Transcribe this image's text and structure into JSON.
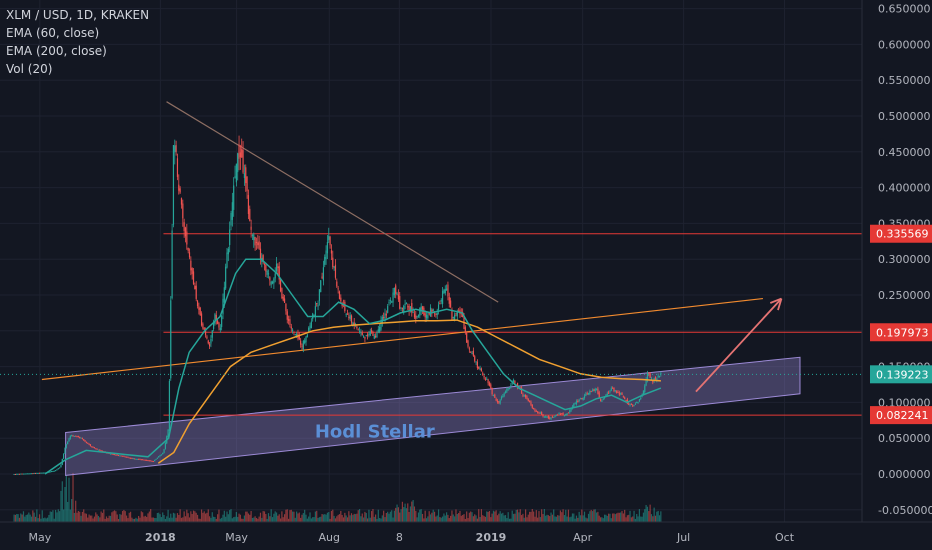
{
  "legend": {
    "symbol": "XLM / USD, 1D, KRAKEN",
    "ema60": "EMA (60, close)",
    "ema200": "EMA (200, close)",
    "vol": "Vol (20)"
  },
  "colors": {
    "background": "#131722",
    "axis_text": "#b2b5be",
    "up_candle": "#26a69a",
    "down_candle": "#ef5350",
    "ema60": "#26a69a",
    "ema200": "#f0a030",
    "horizontal_lines": "#e53935",
    "trendline_down": "#8d6e63",
    "trendline_up": "#f28b2f",
    "channel_fill": "#9c8ad6",
    "arrow": "#e57373",
    "current_price_tag": "#26a69a",
    "text_annotation": "#5b8fd6"
  },
  "chart_data": {
    "type": "line",
    "title": "XLM / USD, 1D, KRAKEN",
    "y_axis": {
      "position": "right",
      "ticks": [
        "0.650000",
        "0.600000",
        "0.550000",
        "0.500000",
        "0.450000",
        "0.400000",
        "0.350000",
        "0.300000",
        "0.250000",
        "0.200000",
        "0.150000",
        "0.100000",
        "0.050000",
        "0.000000",
        "-0.050000"
      ],
      "ylim": [
        -0.06,
        0.66
      ]
    },
    "x_axis": {
      "labels": [
        "May",
        "2018",
        "May",
        "Aug",
        "8",
        "2019",
        "Apr",
        "Jul",
        "Oct"
      ]
    },
    "series": [
      {
        "name": "Price",
        "points": [
          [
            -30,
            0.0
          ],
          [
            0,
            0.002
          ],
          [
            10,
            0.005
          ],
          [
            15,
            0.01
          ],
          [
            20,
            0.04
          ],
          [
            25,
            0.055
          ],
          [
            35,
            0.05
          ],
          [
            45,
            0.038
          ],
          [
            55,
            0.032
          ],
          [
            65,
            0.028
          ],
          [
            75,
            0.025
          ],
          [
            85,
            0.022
          ],
          [
            95,
            0.02
          ],
          [
            105,
            0.018
          ],
          [
            115,
            0.03
          ],
          [
            120,
            0.065
          ],
          [
            125,
            0.48
          ],
          [
            130,
            0.4
          ],
          [
            135,
            0.34
          ],
          [
            140,
            0.3
          ],
          [
            145,
            0.26
          ],
          [
            150,
            0.22
          ],
          [
            155,
            0.2
          ],
          [
            160,
            0.18
          ],
          [
            165,
            0.22
          ],
          [
            170,
            0.2
          ],
          [
            175,
            0.28
          ],
          [
            180,
            0.35
          ],
          [
            185,
            0.43
          ],
          [
            190,
            0.45
          ],
          [
            195,
            0.4
          ],
          [
            200,
            0.34
          ],
          [
            205,
            0.32
          ],
          [
            210,
            0.3
          ],
          [
            215,
            0.28
          ],
          [
            220,
            0.27
          ],
          [
            225,
            0.29
          ],
          [
            230,
            0.25
          ],
          [
            235,
            0.22
          ],
          [
            240,
            0.2
          ],
          [
            245,
            0.19
          ],
          [
            250,
            0.18
          ],
          [
            255,
            0.2
          ],
          [
            260,
            0.22
          ],
          [
            265,
            0.24
          ],
          [
            270,
            0.29
          ],
          [
            275,
            0.34
          ],
          [
            280,
            0.29
          ],
          [
            285,
            0.25
          ],
          [
            290,
            0.23
          ],
          [
            295,
            0.22
          ],
          [
            300,
            0.21
          ],
          [
            305,
            0.2
          ],
          [
            310,
            0.19
          ],
          [
            315,
            0.2
          ],
          [
            320,
            0.19
          ],
          [
            325,
            0.21
          ],
          [
            330,
            0.22
          ],
          [
            335,
            0.24
          ],
          [
            340,
            0.26
          ],
          [
            345,
            0.23
          ],
          [
            350,
            0.24
          ],
          [
            355,
            0.23
          ],
          [
            360,
            0.22
          ],
          [
            365,
            0.23
          ],
          [
            370,
            0.22
          ],
          [
            375,
            0.23
          ],
          [
            380,
            0.22
          ],
          [
            385,
            0.25
          ],
          [
            390,
            0.26
          ],
          [
            395,
            0.22
          ],
          [
            400,
            0.23
          ],
          [
            405,
            0.22
          ],
          [
            410,
            0.18
          ],
          [
            415,
            0.17
          ],
          [
            420,
            0.15
          ],
          [
            425,
            0.14
          ],
          [
            430,
            0.13
          ],
          [
            435,
            0.11
          ],
          [
            440,
            0.1
          ],
          [
            445,
            0.11
          ],
          [
            450,
            0.12
          ],
          [
            455,
            0.13
          ],
          [
            460,
            0.12
          ],
          [
            465,
            0.11
          ],
          [
            470,
            0.1
          ],
          [
            475,
            0.09
          ],
          [
            480,
            0.085
          ],
          [
            485,
            0.08
          ],
          [
            490,
            0.078
          ],
          [
            495,
            0.082
          ],
          [
            500,
            0.085
          ],
          [
            505,
            0.082
          ],
          [
            510,
            0.09
          ],
          [
            515,
            0.1
          ],
          [
            520,
            0.105
          ],
          [
            525,
            0.11
          ],
          [
            530,
            0.115
          ],
          [
            535,
            0.12
          ],
          [
            540,
            0.1
          ],
          [
            545,
            0.11
          ],
          [
            550,
            0.12
          ],
          [
            555,
            0.115
          ],
          [
            560,
            0.11
          ],
          [
            565,
            0.1
          ],
          [
            570,
            0.095
          ],
          [
            575,
            0.1
          ],
          [
            580,
            0.11
          ],
          [
            585,
            0.14
          ],
          [
            590,
            0.13
          ],
          [
            595,
            0.135
          ],
          [
            598,
            0.139
          ]
        ]
      },
      {
        "name": "EMA (60, close)",
        "points": [
          [
            0,
            0.0
          ],
          [
            20,
            0.02
          ],
          [
            40,
            0.033
          ],
          [
            60,
            0.03
          ],
          [
            80,
            0.027
          ],
          [
            100,
            0.024
          ],
          [
            120,
            0.05
          ],
          [
            130,
            0.12
          ],
          [
            140,
            0.17
          ],
          [
            155,
            0.2
          ],
          [
            170,
            0.22
          ],
          [
            185,
            0.28
          ],
          [
            195,
            0.3
          ],
          [
            210,
            0.3
          ],
          [
            225,
            0.28
          ],
          [
            240,
            0.25
          ],
          [
            255,
            0.22
          ],
          [
            270,
            0.22
          ],
          [
            285,
            0.24
          ],
          [
            300,
            0.23
          ],
          [
            315,
            0.21
          ],
          [
            330,
            0.215
          ],
          [
            345,
            0.225
          ],
          [
            360,
            0.23
          ],
          [
            375,
            0.225
          ],
          [
            390,
            0.23
          ],
          [
            405,
            0.225
          ],
          [
            415,
            0.2
          ],
          [
            430,
            0.17
          ],
          [
            445,
            0.14
          ],
          [
            460,
            0.12
          ],
          [
            475,
            0.11
          ],
          [
            490,
            0.1
          ],
          [
            505,
            0.09
          ],
          [
            520,
            0.095
          ],
          [
            535,
            0.105
          ],
          [
            550,
            0.11
          ],
          [
            565,
            0.1
          ],
          [
            580,
            0.11
          ],
          [
            598,
            0.12
          ]
        ]
      },
      {
        "name": "EMA (200, close)",
        "points": [
          [
            110,
            0.015
          ],
          [
            125,
            0.03
          ],
          [
            140,
            0.07
          ],
          [
            160,
            0.11
          ],
          [
            180,
            0.15
          ],
          [
            200,
            0.17
          ],
          [
            220,
            0.18
          ],
          [
            240,
            0.19
          ],
          [
            260,
            0.2
          ],
          [
            280,
            0.205
          ],
          [
            300,
            0.208
          ],
          [
            320,
            0.21
          ],
          [
            340,
            0.212
          ],
          [
            360,
            0.214
          ],
          [
            380,
            0.214
          ],
          [
            400,
            0.215
          ],
          [
            420,
            0.205
          ],
          [
            440,
            0.19
          ],
          [
            460,
            0.175
          ],
          [
            480,
            0.16
          ],
          [
            500,
            0.15
          ],
          [
            520,
            0.14
          ],
          [
            540,
            0.135
          ],
          [
            560,
            0.133
          ],
          [
            580,
            0.132
          ],
          [
            598,
            0.13
          ]
        ]
      }
    ],
    "horizontal_levels": [
      {
        "label": "0.335569",
        "value": 0.335569
      },
      {
        "label": "0.197973",
        "value": 0.197973
      },
      {
        "label": "0.082241",
        "value": 0.082241
      }
    ],
    "current_price": {
      "label": "0.139223",
      "value": 0.139223
    },
    "annotations": [
      "Hodl Stellar"
    ]
  }
}
